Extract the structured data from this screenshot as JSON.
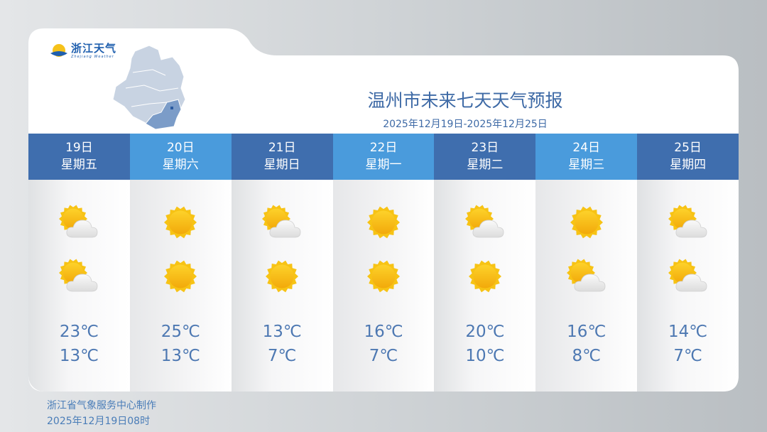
{
  "logo": {
    "cn": "浙江天气",
    "en": "Zhejiang Weather"
  },
  "title": "温州市未来七天天气预报",
  "subtitle": "2025年12月19日-2025年12月25日",
  "colors": {
    "header_dark": "#3f6eae",
    "header_light": "#4a9bdc",
    "text": "#4d78b2",
    "highlight_region": "#7b9cc8"
  },
  "days": [
    {
      "date": "19日",
      "weekday": "星期五",
      "icon_day": "partly-cloudy",
      "icon_night": "partly-cloudy",
      "high": "23℃",
      "low": "13℃"
    },
    {
      "date": "20日",
      "weekday": "星期六",
      "icon_day": "sunny",
      "icon_night": "sunny",
      "high": "25℃",
      "low": "13℃"
    },
    {
      "date": "21日",
      "weekday": "星期日",
      "icon_day": "partly-cloudy",
      "icon_night": "sunny",
      "high": "13℃",
      "low": "7℃"
    },
    {
      "date": "22日",
      "weekday": "星期一",
      "icon_day": "sunny",
      "icon_night": "sunny",
      "high": "16℃",
      "low": "7℃"
    },
    {
      "date": "23日",
      "weekday": "星期二",
      "icon_day": "partly-cloudy",
      "icon_night": "sunny",
      "high": "20℃",
      "low": "10℃"
    },
    {
      "date": "24日",
      "weekday": "星期三",
      "icon_day": "sunny",
      "icon_night": "partly-cloudy",
      "high": "16℃",
      "low": "8℃"
    },
    {
      "date": "25日",
      "weekday": "星期四",
      "icon_day": "partly-cloudy",
      "icon_night": "partly-cloudy",
      "high": "14℃",
      "low": "7℃"
    }
  ],
  "footer": {
    "maker": "浙江省气象服务中心制作",
    "issued": "2025年12月19日08时"
  }
}
